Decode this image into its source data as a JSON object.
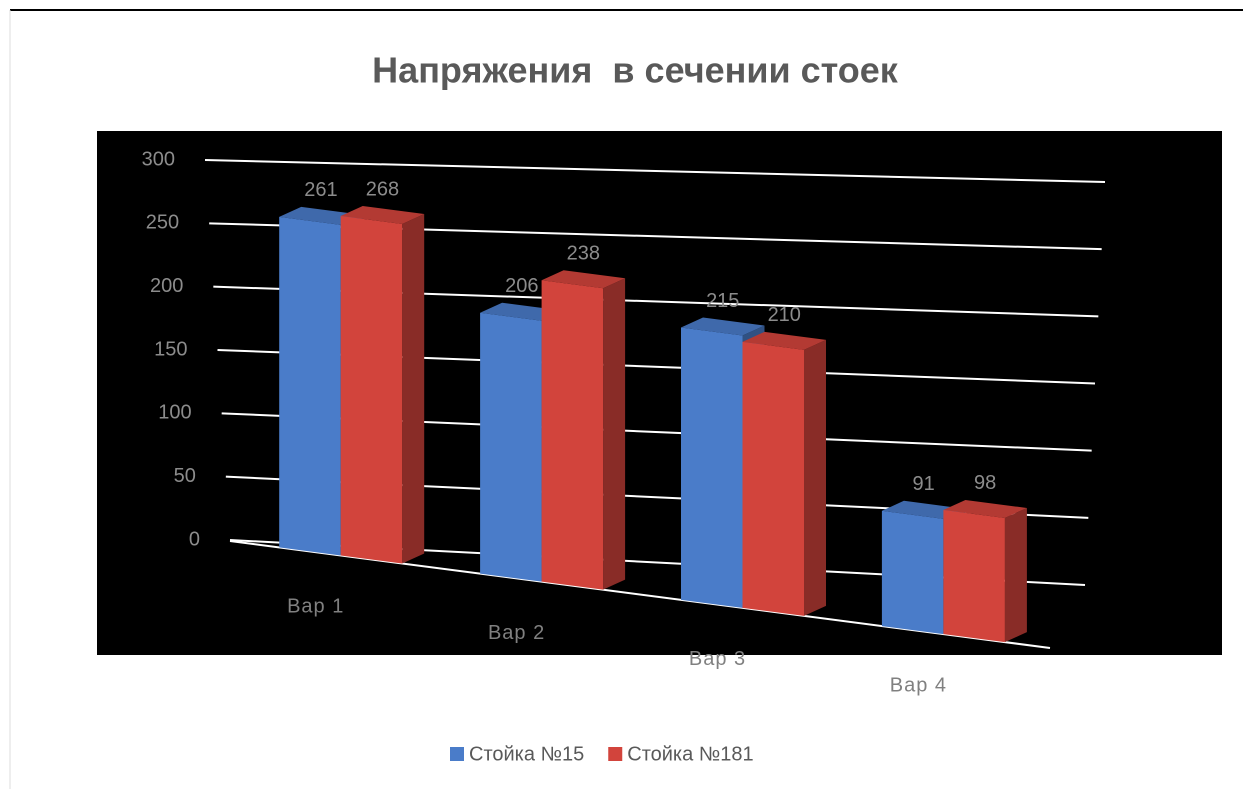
{
  "chart_data": {
    "type": "bar3d",
    "title": "Напряжения  в сечении стоек",
    "categories": [
      "Вар 1",
      "Вар 2",
      "Вар 3",
      "Вар 4"
    ],
    "series": [
      {
        "name": "Стойка №15",
        "color": "#4a7cc9",
        "values": [
          261,
          206,
          215,
          91
        ]
      },
      {
        "name": "Стойка №181",
        "color": "#d2443c",
        "values": [
          268,
          238,
          210,
          98
        ]
      }
    ],
    "ylim": [
      0,
      300
    ],
    "yticks": [
      0,
      50,
      100,
      150,
      200,
      250,
      300
    ],
    "grid": true,
    "legend": "bottom"
  }
}
